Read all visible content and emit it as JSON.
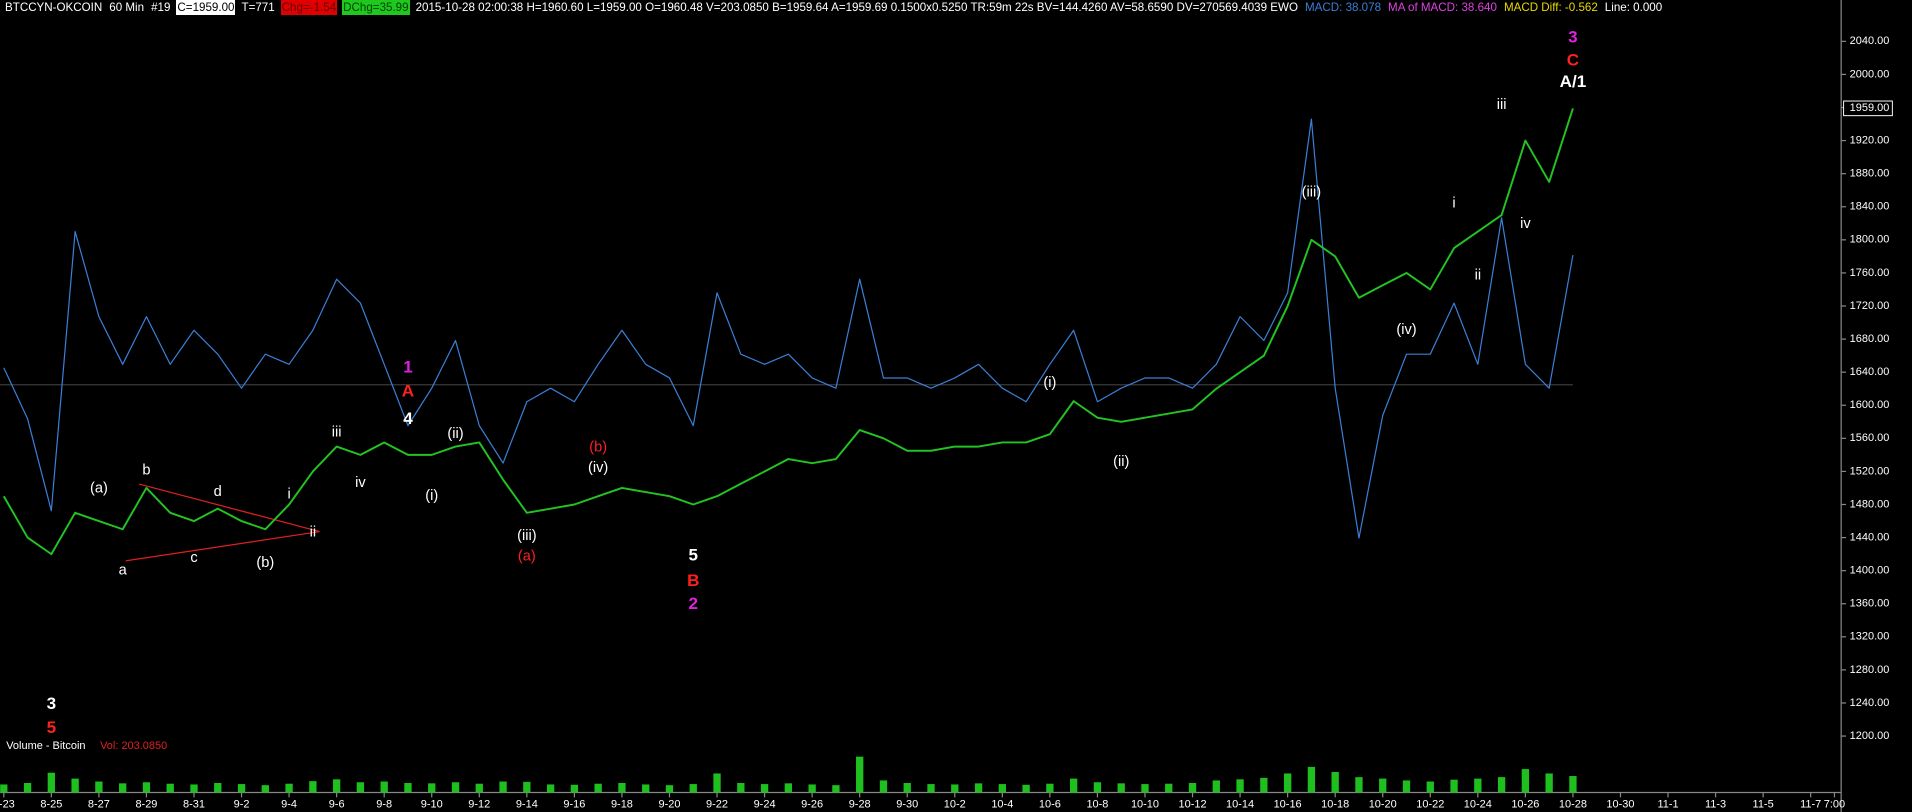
{
  "chart_data": [
    {
      "type": "line",
      "header": [
        {
          "text": "BTCCYN-OKCOIN",
          "color": "#ffffff"
        },
        {
          "text": "60 Min",
          "color": "#ffffff"
        },
        {
          "text": "#19",
          "color": "#ffffff"
        },
        {
          "text": "C=1959.00",
          "color": "#000000",
          "background": "#ffffff"
        },
        {
          "text": "T=771",
          "color": "#ffffff"
        },
        {
          "text": "Chg=-1.54",
          "color": "#600000",
          "background": "#e00000"
        },
        {
          "text": "DChg=35.99",
          "color": "#004400",
          "background": "#1ec81e"
        },
        {
          "text": "2015-10-28 02:00:38 H=1960.60 L=1959.00 O=1960.48 V=203.0850 B=1959.64 A=1959.69 0.1500x0.5250 TR:59m 22s BV=144.4260 AV=58.6590 DV=270569.4039 EWO",
          "color": "#ffffff"
        },
        {
          "text": "MACD: 38.078",
          "color": "#3a7fd5"
        },
        {
          "text": "MA of MACD: 38.640",
          "color": "#e040e0"
        },
        {
          "text": "MACD Diff: -0.562",
          "color": "#e8d800"
        },
        {
          "text": "Line: 0.000",
          "color": "#ffffff"
        }
      ],
      "categories": [
        "8-23",
        null,
        "8-25",
        null,
        "8-27",
        null,
        "8-29",
        null,
        "8-31",
        null,
        "9-2",
        null,
        "9-4",
        null,
        "9-6",
        null,
        "9-8",
        null,
        "9-10",
        null,
        "9-12",
        null,
        "9-14",
        null,
        "9-16",
        null,
        "9-18",
        null,
        "9-20",
        null,
        "9-22",
        null,
        "9-24",
        null,
        "9-26",
        null,
        "9-28",
        null,
        "9-30",
        null,
        "10-2",
        null,
        "10-4",
        null,
        "10-6",
        null,
        "10-8",
        null,
        "10-10",
        null,
        "10-12",
        null,
        "10-14",
        null,
        "10-16",
        null,
        "10-18",
        null,
        "10-20",
        null,
        "10-22",
        null,
        "10-24",
        null,
        "10-26",
        null,
        "10-28",
        null,
        "10-30",
        null,
        "11-1",
        null,
        "11-3",
        null,
        "11-5",
        null,
        "11-7",
        "7:00"
      ],
      "series": [
        {
          "color": "#22c322",
          "values": [
            1490,
            1440,
            1420,
            1470,
            1460,
            1450,
            1500,
            1470,
            1460,
            1475,
            1460,
            1450,
            1480,
            1520,
            1550,
            1540,
            1555,
            1540,
            1540,
            1550,
            1555,
            1510,
            1470,
            1475,
            1480,
            1490,
            1500,
            1495,
            1490,
            1480,
            1490,
            1505,
            1520,
            1535,
            1530,
            1535,
            1570,
            1560,
            1545,
            1545,
            1550,
            1550,
            1555,
            1555,
            1565,
            1605,
            1585,
            1580,
            1585,
            1590,
            1595,
            1620,
            1640,
            1660,
            1720,
            1800,
            1780,
            1730,
            1745,
            1760,
            1740,
            1790,
            1810,
            1830,
            1920,
            1870,
            1959,
            null,
            null,
            null,
            null,
            null,
            null,
            null,
            null,
            null,
            null,
            null
          ]
        },
        {
          "color": "#3a7fd5",
          "axis": "y2",
          "values": [
            5,
            -10,
            -37,
            45,
            20,
            6,
            20,
            6,
            16,
            9,
            -1,
            9,
            6,
            16,
            31,
            24,
            6,
            -12,
            -1,
            13,
            -12,
            -23,
            -5,
            -1,
            -5,
            6,
            16,
            6,
            2,
            -12,
            27,
            9,
            6,
            9,
            2,
            -1,
            31,
            2,
            2,
            -1,
            2,
            6,
            -1,
            -5,
            6,
            16,
            -5,
            -1,
            2,
            2,
            -1,
            6,
            20,
            13,
            27,
            78,
            -1,
            -45,
            -9,
            9,
            9,
            24,
            6,
            49,
            6,
            -1,
            38.078,
            null,
            null,
            null,
            null,
            null,
            null,
            null,
            null,
            null,
            null,
            null
          ]
        }
      ],
      "ylim": [
        1176,
        2090
      ],
      "yticks": [
        {
          "value": 1200,
          "label": "1200.00"
        },
        {
          "value": 1240,
          "label": "1240.00"
        },
        {
          "value": 1280,
          "label": "1280.00"
        },
        {
          "value": 1320,
          "label": "1320.00"
        },
        {
          "value": 1360,
          "label": "1360.00"
        },
        {
          "value": 1400,
          "label": "1400.00"
        },
        {
          "value": 1440,
          "label": "1440.00"
        },
        {
          "value": 1480,
          "label": "1480.00"
        },
        {
          "value": 1520,
          "label": "1520.00"
        },
        {
          "value": 1560,
          "label": "1560.00"
        },
        {
          "value": 1600,
          "label": "1600.00"
        },
        {
          "value": 1640,
          "label": "1640.00"
        },
        {
          "value": 1680,
          "label": "1680.00"
        },
        {
          "value": 1720,
          "label": "1720.00"
        },
        {
          "value": 1760,
          "label": "1760.00"
        },
        {
          "value": 1800,
          "label": "1800.00"
        },
        {
          "value": 1840,
          "label": "1840.00"
        },
        {
          "value": 1880,
          "label": "1880.00"
        },
        {
          "value": 1920,
          "label": "1920.00"
        },
        {
          "value": 1960,
          "label": "1960.00"
        },
        {
          "value": 2000,
          "label": "2000.00"
        },
        {
          "value": 2040,
          "label": "2040.00"
        }
      ],
      "y2lim": [
        -109,
        113
      ],
      "grid": false,
      "last_price": {
        "value": 1959,
        "label": "1959.00"
      },
      "annotations": [
        {
          "text": "3",
          "color": "#ffffff",
          "x": "8-25",
          "y": 1238
        },
        {
          "text": "5",
          "color": "#ff2020",
          "x": "8-25",
          "y": 1209
        },
        {
          "text": "(a)",
          "color": "#ffffff",
          "x": "8-27",
          "y": 1499
        },
        {
          "text": "a",
          "color": "#ffffff",
          "x": "8-28",
          "y": 1400
        },
        {
          "text": "b",
          "color": "#ffffff",
          "x": "8-29",
          "y": 1521
        },
        {
          "text": "c",
          "color": "#ffffff",
          "x": "8-31",
          "y": 1415
        },
        {
          "text": "d",
          "color": "#ffffff",
          "x": "9-1",
          "y": 1495
        },
        {
          "text": "(b)",
          "color": "#ffffff",
          "x": "9-3",
          "y": 1409
        },
        {
          "text": "i",
          "color": "#ffffff",
          "x": "9-4",
          "y": 1492
        },
        {
          "text": "ii",
          "color": "#ffffff",
          "x": "9-5",
          "y": 1446
        },
        {
          "text": "iii",
          "color": "#ffffff",
          "x": "9-6",
          "y": 1567
        },
        {
          "text": "iv",
          "color": "#ffffff",
          "x": "9-7",
          "y": 1506
        },
        {
          "text": "1",
          "color": "#e020e0",
          "x": "9-9",
          "y": 1645
        },
        {
          "text": "A",
          "color": "#ff2020",
          "x": "9-9",
          "y": 1616
        },
        {
          "text": "4",
          "color": "#ffffff",
          "x": "9-9",
          "y": 1583
        },
        {
          "text": "(i)",
          "color": "#ffffff",
          "x": "9-10",
          "y": 1490
        },
        {
          "text": "(ii)",
          "color": "#ffffff",
          "x": "9-11",
          "y": 1565
        },
        {
          "text": "(iii)",
          "color": "#ffffff",
          "x": "9-14",
          "y": 1442
        },
        {
          "text": "(a)",
          "color": "#ff2020",
          "x": "9-14",
          "y": 1417
        },
        {
          "text": "(b)",
          "color": "#ff2020",
          "x": "9-17",
          "y": 1549
        },
        {
          "text": "(iv)",
          "color": "#ffffff",
          "x": "9-17",
          "y": 1524
        },
        {
          "text": "5",
          "color": "#ffffff",
          "x": "9-21",
          "y": 1418
        },
        {
          "text": "B",
          "color": "#ff2020",
          "x": "9-21",
          "y": 1387
        },
        {
          "text": "2",
          "color": "#e020e0",
          "x": "9-21",
          "y": 1359
        },
        {
          "text": "(i)",
          "color": "#ffffff",
          "x": "10-6",
          "y": 1627
        },
        {
          "text": "(ii)",
          "color": "#ffffff",
          "x": "10-9",
          "y": 1531
        },
        {
          "text": "(iii)",
          "color": "#ffffff",
          "x": "10-17",
          "y": 1857
        },
        {
          "text": "(iv)",
          "color": "#ffffff",
          "x": "10-21",
          "y": 1691
        },
        {
          "text": "i",
          "color": "#ffffff",
          "x": "10-23",
          "y": 1844
        },
        {
          "text": "ii",
          "color": "#ffffff",
          "x": "10-24",
          "y": 1757
        },
        {
          "text": "iii",
          "color": "#ffffff",
          "x": "10-25",
          "y": 1963
        },
        {
          "text": "iv",
          "color": "#ffffff",
          "x": "10-26",
          "y": 1819
        },
        {
          "text": "3",
          "color": "#e020e0",
          "x": "10-28",
          "y": 2044
        },
        {
          "text": "C",
          "color": "#ff2020",
          "x": "10-28",
          "y": 2016
        },
        {
          "text": "A/1",
          "color": "#ffffff",
          "x": "10-28",
          "y": 1990
        }
      ]
    },
    {
      "type": "bar",
      "title": "Volume - Bitcoin",
      "subtitle": "Vol: 203.0850",
      "color": "#1fbf1f",
      "ylim": [
        0,
        1000
      ],
      "values": [
        220,
        260,
        540,
        380,
        300,
        250,
        280,
        240,
        220,
        260,
        230,
        200,
        240,
        310,
        360,
        280,
        300,
        260,
        250,
        280,
        240,
        300,
        290,
        220,
        210,
        240,
        260,
        220,
        200,
        230,
        520,
        260,
        230,
        250,
        220,
        200,
        980,
        330,
        260,
        230,
        220,
        250,
        230,
        210,
        240,
        380,
        280,
        250,
        230,
        240,
        260,
        330,
        360,
        400,
        520,
        700,
        560,
        420,
        380,
        330,
        300,
        350,
        380,
        420,
        640,
        520,
        450,
        null,
        null,
        null,
        null,
        null,
        null,
        null,
        null,
        null,
        null,
        null
      ]
    }
  ]
}
